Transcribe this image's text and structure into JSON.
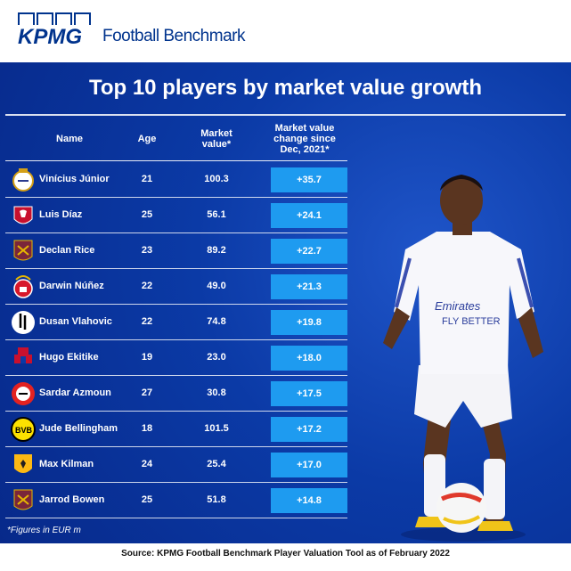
{
  "header": {
    "brand": "KPMG",
    "product": "Football Benchmark"
  },
  "panel": {
    "title": "Top 10 players by market value growth",
    "columns": {
      "name": "Name",
      "age": "Age",
      "value": "Market value*",
      "change": "Market value change since Dec, 2021*"
    },
    "rows": [
      {
        "name": "Vinícius Júnior",
        "age": "21",
        "value": "100.3",
        "change": "+35.7",
        "crest": "real-madrid-crest-icon"
      },
      {
        "name": "Luis Díaz",
        "age": "25",
        "value": "56.1",
        "change": "+24.1",
        "crest": "liverpool-crest-icon"
      },
      {
        "name": "Declan Rice",
        "age": "23",
        "value": "89.2",
        "change": "+22.7",
        "crest": "west-ham-crest-icon"
      },
      {
        "name": "Darwin Núñez",
        "age": "22",
        "value": "49.0",
        "change": "+21.3",
        "crest": "benfica-crest-icon"
      },
      {
        "name": "Dusan Vlahovic",
        "age": "22",
        "value": "74.8",
        "change": "+19.8",
        "crest": "juventus-crest-icon"
      },
      {
        "name": "Hugo Ekitike",
        "age": "19",
        "value": "23.0",
        "change": "+18.0",
        "crest": "reims-crest-icon"
      },
      {
        "name": "Sardar Azmoun",
        "age": "27",
        "value": "30.8",
        "change": "+17.5",
        "crest": "leverkusen-crest-icon"
      },
      {
        "name": "Jude Bellingham",
        "age": "18",
        "value": "101.5",
        "change": "+17.2",
        "crest": "dortmund-crest-icon"
      },
      {
        "name": "Max Kilman",
        "age": "24",
        "value": "25.4",
        "change": "+17.0",
        "crest": "wolves-crest-icon"
      },
      {
        "name": "Jarrod Bowen",
        "age": "25",
        "value": "51.8",
        "change": "+14.8",
        "crest": "west-ham-crest-icon"
      }
    ],
    "footnote": "*Figures in EUR m"
  },
  "source": "Source: KPMG Football Benchmark Player Valuation Tool as of February 2022",
  "colors": {
    "kpmg_blue": "#00338d",
    "panel_blue": "#0b3aa6",
    "change_cell": "#1e9bf0"
  }
}
